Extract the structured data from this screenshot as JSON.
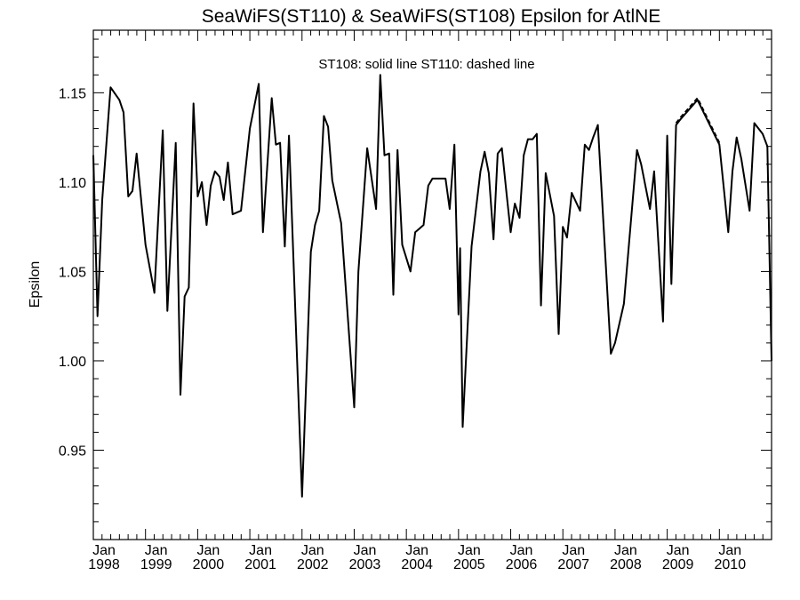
{
  "chart_data": {
    "type": "line",
    "title": "SeaWiFS(ST110) & SeaWiFS(ST108)  Epsilon for AtlNE",
    "annotation": "ST108: solid line   ST110: dashed line",
    "ylabel": "Epsilon",
    "xlabel": "",
    "xlim": [
      1998.0,
      2011.0
    ],
    "ylim": [
      0.9,
      1.185
    ],
    "yticks": [
      "0.95",
      "1.00",
      "1.05",
      "1.10",
      "1.15"
    ],
    "ytick_values": [
      0.95,
      1.0,
      1.05,
      1.1,
      1.15
    ],
    "xticks_top": [
      "Jan",
      "Jan",
      "Jan",
      "Jan",
      "Jan",
      "Jan",
      "Jan",
      "Jan",
      "Jan",
      "Jan",
      "Jan",
      "Jan",
      "Jan"
    ],
    "xticks_bottom": [
      "1998",
      "1999",
      "2000",
      "2001",
      "2002",
      "2003",
      "2004",
      "2005",
      "2006",
      "2007",
      "2008",
      "2009",
      "2010"
    ],
    "xtick_values": [
      1998,
      1999,
      2000,
      2001,
      2002,
      2003,
      2004,
      2005,
      2006,
      2007,
      2008,
      2009,
      2010
    ],
    "grid": false,
    "series": [
      {
        "name": "ST108",
        "style": "solid",
        "color": "#000000",
        "points": [
          [
            1998.0,
            1.115
          ],
          [
            1998.08,
            1.025
          ],
          [
            1998.17,
            1.09
          ],
          [
            1998.33,
            1.153
          ],
          [
            1998.5,
            1.146
          ],
          [
            1998.58,
            1.139
          ],
          [
            1998.67,
            1.092
          ],
          [
            1998.75,
            1.095
          ],
          [
            1998.83,
            1.116
          ],
          [
            1999.0,
            1.065
          ],
          [
            1999.17,
            1.038
          ],
          [
            1999.33,
            1.129
          ],
          [
            1999.42,
            1.028
          ],
          [
            1999.58,
            1.122
          ],
          [
            1999.67,
            0.981
          ],
          [
            1999.75,
            1.036
          ],
          [
            1999.83,
            1.041
          ],
          [
            1999.92,
            1.144
          ],
          [
            2000.0,
            1.092
          ],
          [
            2000.08,
            1.1
          ],
          [
            2000.17,
            1.076
          ],
          [
            2000.25,
            1.098
          ],
          [
            2000.33,
            1.106
          ],
          [
            2000.42,
            1.103
          ],
          [
            2000.5,
            1.09
          ],
          [
            2000.58,
            1.111
          ],
          [
            2000.67,
            1.082
          ],
          [
            2000.83,
            1.084
          ],
          [
            2001.0,
            1.13
          ],
          [
            2001.17,
            1.155
          ],
          [
            2001.25,
            1.072
          ],
          [
            2001.42,
            1.147
          ],
          [
            2001.5,
            1.121
          ],
          [
            2001.58,
            1.122
          ],
          [
            2001.67,
            1.064
          ],
          [
            2001.75,
            1.126
          ],
          [
            2002.0,
            0.924
          ],
          [
            2002.17,
            1.061
          ],
          [
            2002.25,
            1.076
          ],
          [
            2002.33,
            1.084
          ],
          [
            2002.42,
            1.137
          ],
          [
            2002.5,
            1.131
          ],
          [
            2002.58,
            1.101
          ],
          [
            2002.75,
            1.077
          ],
          [
            2003.0,
            0.974
          ],
          [
            2003.08,
            1.05
          ],
          [
            2003.25,
            1.119
          ],
          [
            2003.42,
            1.085
          ],
          [
            2003.5,
            1.16
          ],
          [
            2003.58,
            1.115
          ],
          [
            2003.67,
            1.116
          ],
          [
            2003.75,
            1.037
          ],
          [
            2003.83,
            1.118
          ],
          [
            2003.92,
            1.065
          ],
          [
            2004.08,
            1.05
          ],
          [
            2004.17,
            1.072
          ],
          [
            2004.25,
            1.074
          ],
          [
            2004.33,
            1.076
          ],
          [
            2004.42,
            1.098
          ],
          [
            2004.5,
            1.102
          ],
          [
            2004.75,
            1.102
          ],
          [
            2004.83,
            1.085
          ],
          [
            2004.92,
            1.121
          ],
          [
            2005.0,
            1.026
          ],
          [
            2005.03,
            1.063
          ],
          [
            2005.08,
            0.963
          ],
          [
            2005.25,
            1.064
          ],
          [
            2005.42,
            1.106
          ],
          [
            2005.5,
            1.117
          ],
          [
            2005.58,
            1.105
          ],
          [
            2005.67,
            1.068
          ],
          [
            2005.75,
            1.116
          ],
          [
            2005.83,
            1.119
          ],
          [
            2005.92,
            1.094
          ],
          [
            2006.0,
            1.072
          ],
          [
            2006.08,
            1.088
          ],
          [
            2006.17,
            1.08
          ],
          [
            2006.25,
            1.115
          ],
          [
            2006.33,
            1.124
          ],
          [
            2006.42,
            1.124
          ],
          [
            2006.5,
            1.127
          ],
          [
            2006.58,
            1.031
          ],
          [
            2006.67,
            1.105
          ],
          [
            2006.83,
            1.081
          ],
          [
            2006.92,
            1.015
          ],
          [
            2007.0,
            1.075
          ],
          [
            2007.08,
            1.069
          ],
          [
            2007.17,
            1.094
          ],
          [
            2007.33,
            1.084
          ],
          [
            2007.42,
            1.121
          ],
          [
            2007.5,
            1.118
          ],
          [
            2007.58,
            1.125
          ],
          [
            2007.67,
            1.132
          ],
          [
            2007.92,
            1.004
          ],
          [
            2008.0,
            1.01
          ],
          [
            2008.17,
            1.032
          ],
          [
            2008.42,
            1.118
          ],
          [
            2008.5,
            1.11
          ],
          [
            2008.67,
            1.085
          ],
          [
            2008.75,
            1.106
          ],
          [
            2008.92,
            1.022
          ],
          [
            2009.0,
            1.126
          ],
          [
            2009.08,
            1.043
          ],
          [
            2009.17,
            1.132
          ],
          [
            2009.25,
            1.135
          ],
          [
            2009.58,
            1.146
          ],
          [
            2010.0,
            1.121
          ],
          [
            2010.17,
            1.072
          ],
          [
            2010.25,
            1.106
          ],
          [
            2010.33,
            1.125
          ],
          [
            2010.42,
            1.113
          ],
          [
            2010.58,
            1.084
          ],
          [
            2010.67,
            1.133
          ],
          [
            2010.83,
            1.127
          ],
          [
            2010.92,
            1.12
          ],
          [
            2011.0,
            1.0
          ]
        ]
      },
      {
        "name": "ST110",
        "style": "dashed",
        "color": "#000000",
        "points": [
          [
            2009.17,
            1.133
          ],
          [
            2009.25,
            1.136
          ],
          [
            2009.58,
            1.147
          ],
          [
            2010.0,
            1.122
          ]
        ]
      }
    ]
  }
}
